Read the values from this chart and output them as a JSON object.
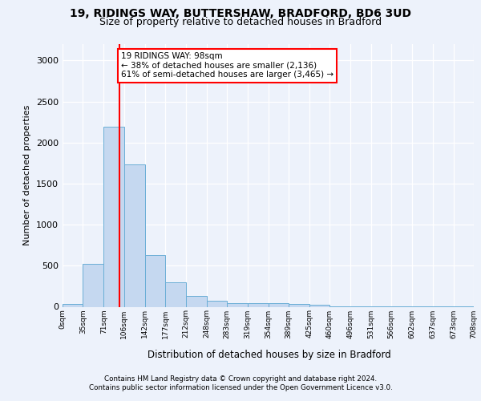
{
  "title_line1": "19, RIDINGS WAY, BUTTERSHAW, BRADFORD, BD6 3UD",
  "title_line2": "Size of property relative to detached houses in Bradford",
  "xlabel": "Distribution of detached houses by size in Bradford",
  "ylabel": "Number of detached properties",
  "bar_edges": [
    0,
    35,
    71,
    106,
    142,
    177,
    212,
    248,
    283,
    319,
    354,
    389,
    425,
    460,
    496,
    531,
    566,
    602,
    637,
    673,
    708
  ],
  "bar_labels": [
    "0sqm",
    "35sqm",
    "71sqm",
    "106sqm",
    "142sqm",
    "177sqm",
    "212sqm",
    "248sqm",
    "283sqm",
    "319sqm",
    "354sqm",
    "389sqm",
    "425sqm",
    "460sqm",
    "496sqm",
    "531sqm",
    "566sqm",
    "602sqm",
    "637sqm",
    "673sqm",
    "708sqm"
  ],
  "bar_values": [
    30,
    525,
    2195,
    1730,
    635,
    295,
    130,
    75,
    45,
    40,
    40,
    35,
    25,
    5,
    5,
    5,
    5,
    5,
    5,
    5
  ],
  "bar_color": "#c5d8f0",
  "bar_edgecolor": "#6aaed6",
  "vline_x": 98,
  "vline_color": "red",
  "annotation_text": "19 RIDINGS WAY: 98sqm\n← 38% of detached houses are smaller (2,136)\n61% of semi-detached houses are larger (3,465) →",
  "annotation_box_color": "white",
  "annotation_box_edgecolor": "red",
  "ylim": [
    0,
    3200
  ],
  "yticks": [
    0,
    500,
    1000,
    1500,
    2000,
    2500,
    3000
  ],
  "footer_line1": "Contains HM Land Registry data © Crown copyright and database right 2024.",
  "footer_line2": "Contains public sector information licensed under the Open Government Licence v3.0.",
  "bg_color": "#edf2fb"
}
